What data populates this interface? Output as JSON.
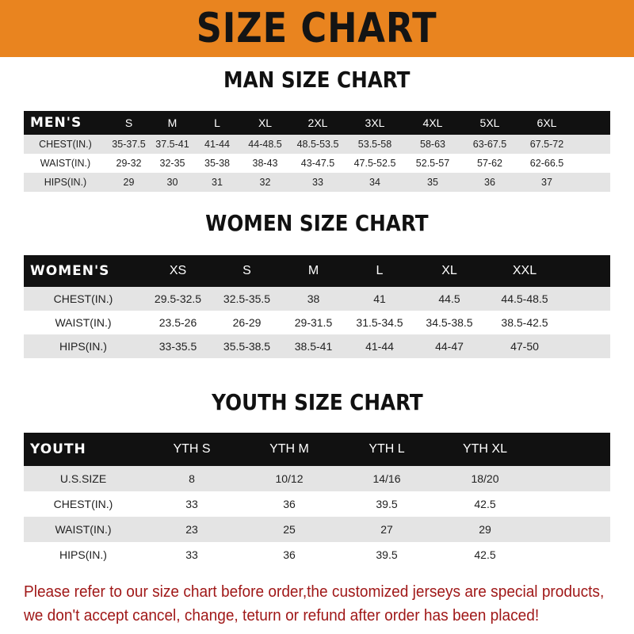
{
  "title": "SIZE CHART",
  "colors": {
    "banner": "#e9841f",
    "header_row": "#111111",
    "alt_row": "#e4e4e4",
    "note": "#a01818"
  },
  "men": {
    "title": "MAN SIZE CHART",
    "header": "MEN'S",
    "sizes": [
      "S",
      "M",
      "L",
      "XL",
      "2XL",
      "3XL",
      "4XL",
      "5XL",
      "6XL"
    ],
    "rows": [
      {
        "label": "CHEST(IN.)",
        "values": [
          "35-37.5",
          "37.5-41",
          "41-44",
          "44-48.5",
          "48.5-53.5",
          "53.5-58",
          "58-63",
          "63-67.5",
          "67.5-72"
        ]
      },
      {
        "label": "WAIST(IN.)",
        "values": [
          "29-32",
          "32-35",
          "35-38",
          "38-43",
          "43-47.5",
          "47.5-52.5",
          "52.5-57",
          "57-62",
          "62-66.5"
        ]
      },
      {
        "label": "HIPS(IN.)",
        "values": [
          "29",
          "30",
          "31",
          "32",
          "33",
          "34",
          "35",
          "36",
          "37"
        ]
      }
    ]
  },
  "women": {
    "title": "WOMEN SIZE CHART",
    "header": "WOMEN'S",
    "sizes": [
      "XS",
      "S",
      "M",
      "L",
      "XL",
      "XXL"
    ],
    "rows": [
      {
        "label": "CHEST(IN.)",
        "values": [
          "29.5-32.5",
          "32.5-35.5",
          "38",
          "41",
          "44.5",
          "44.5-48.5"
        ]
      },
      {
        "label": "WAIST(IN.)",
        "values": [
          "23.5-26",
          "26-29",
          "29-31.5",
          "31.5-34.5",
          "34.5-38.5",
          "38.5-42.5"
        ]
      },
      {
        "label": "HIPS(IN.)",
        "values": [
          "33-35.5",
          "35.5-38.5",
          "38.5-41",
          "41-44",
          "44-47",
          "47-50"
        ]
      }
    ]
  },
  "youth": {
    "title": "YOUTH SIZE CHART",
    "header": "YOUTH",
    "sizes": [
      "YTH S",
      "YTH M",
      "YTH L",
      "YTH XL"
    ],
    "rows": [
      {
        "label": "U.S.SIZE",
        "values": [
          "8",
          "10/12",
          "14/16",
          "18/20"
        ]
      },
      {
        "label": "CHEST(IN.)",
        "values": [
          "33",
          "36",
          "39.5",
          "42.5"
        ]
      },
      {
        "label": "WAIST(IN.)",
        "values": [
          "23",
          "25",
          "27",
          "29"
        ]
      },
      {
        "label": "HIPS(IN.)",
        "values": [
          "33",
          "36",
          "39.5",
          "42.5"
        ]
      }
    ]
  },
  "note": {
    "line1": "Please refer to our size chart before order,the customized jerseys are special products,",
    "line2": "we don't accept cancel, change, teturn or refund after order has been placed!"
  }
}
